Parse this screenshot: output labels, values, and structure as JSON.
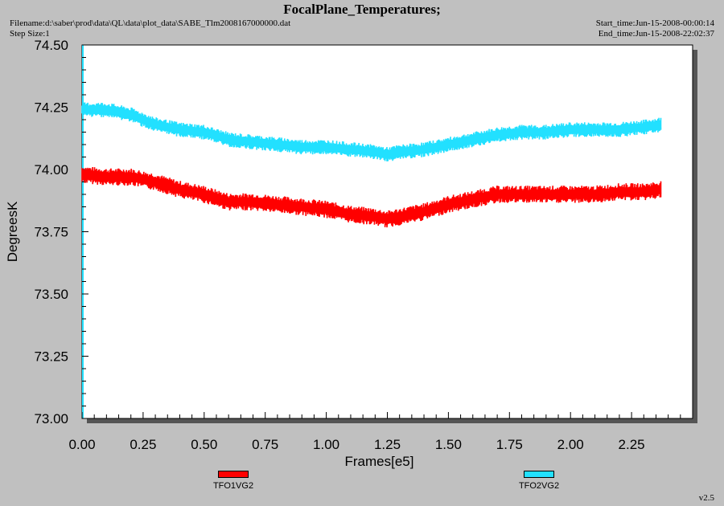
{
  "header": {
    "title": "FocalPlane_Temperatures;",
    "filename": "Filename:d:\\saber\\prod\\data\\QL\\data\\plot_data\\SABE_Tlm2008167000000.dat",
    "step_size": "Step Size:1",
    "start_time": "Start_time:Jun-15-2008-00:00:14",
    "end_time": "End_time:Jun-15-2008-22:02:37"
  },
  "footer": {
    "version": "v2.5"
  },
  "colors": {
    "background": "#c0c0c0",
    "plot_area": "#ffffff",
    "axis": "#000000"
  },
  "chart_data": {
    "type": "line",
    "title": "FocalPlane_Temperatures;",
    "xlabel": "Frames[e5]",
    "ylabel": "DegreesK",
    "xlim": [
      0,
      2.5
    ],
    "ylim": [
      73.0,
      74.5
    ],
    "x_ticks": [
      "0.00",
      "0.25",
      "0.50",
      "0.75",
      "1.00",
      "1.25",
      "1.50",
      "1.75",
      "2.00",
      "2.25"
    ],
    "y_ticks": [
      "73.00",
      "73.25",
      "73.50",
      "73.75",
      "74.00",
      "74.25",
      "74.50"
    ],
    "grid": false,
    "legend_position": "bottom",
    "series": [
      {
        "name": "TFO1VG2",
        "color": "#ff0000",
        "noise_band": 0.035,
        "x": [
          0.0,
          0.1,
          0.2,
          0.3,
          0.4,
          0.5,
          0.6,
          0.7,
          0.8,
          0.9,
          1.0,
          1.1,
          1.2,
          1.25,
          1.3,
          1.4,
          1.5,
          1.6,
          1.7,
          1.8,
          1.9,
          2.0,
          2.1,
          2.2,
          2.3,
          2.37
        ],
        "y": [
          73.98,
          73.97,
          73.97,
          73.95,
          73.92,
          73.9,
          73.87,
          73.87,
          73.86,
          73.85,
          73.84,
          73.82,
          73.81,
          73.8,
          73.81,
          73.83,
          73.86,
          73.88,
          73.9,
          73.9,
          73.9,
          73.9,
          73.9,
          73.91,
          73.91,
          73.92
        ]
      },
      {
        "name": "TFO2VG2",
        "color": "#22e0ff",
        "noise_band": 0.03,
        "x": [
          0.0,
          0.1,
          0.2,
          0.3,
          0.4,
          0.5,
          0.6,
          0.7,
          0.8,
          0.9,
          1.0,
          1.1,
          1.2,
          1.25,
          1.3,
          1.4,
          1.5,
          1.6,
          1.7,
          1.8,
          1.9,
          2.0,
          2.1,
          2.2,
          2.3,
          2.37
        ],
        "y": [
          74.24,
          74.24,
          74.22,
          74.18,
          74.16,
          74.15,
          74.12,
          74.11,
          74.1,
          74.09,
          74.09,
          74.08,
          74.07,
          74.06,
          74.07,
          74.08,
          74.1,
          74.12,
          74.14,
          74.15,
          74.15,
          74.16,
          74.16,
          74.16,
          74.17,
          74.18
        ]
      }
    ]
  }
}
